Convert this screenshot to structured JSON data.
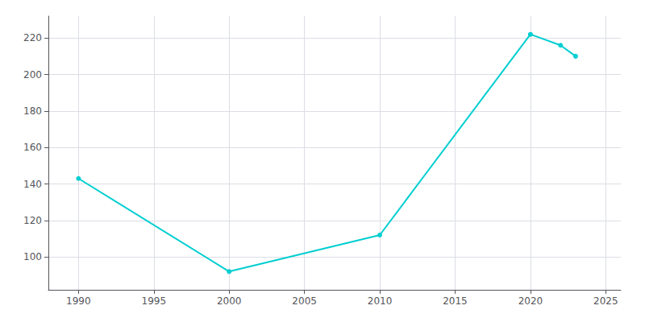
{
  "chart_data": {
    "type": "line",
    "x": [
      1990,
      2000,
      2010,
      2020,
      2022,
      2023
    ],
    "values": [
      143,
      92,
      112,
      222,
      216,
      210
    ],
    "color": "#00CED1",
    "marker": "circle",
    "xlim": [
      1988,
      2026
    ],
    "ylim": [
      82,
      232
    ],
    "xticks": [
      1990,
      1995,
      2000,
      2005,
      2010,
      2015,
      2020,
      2025
    ],
    "yticks": [
      100,
      120,
      140,
      160,
      180,
      200,
      220
    ],
    "grid": true
  }
}
